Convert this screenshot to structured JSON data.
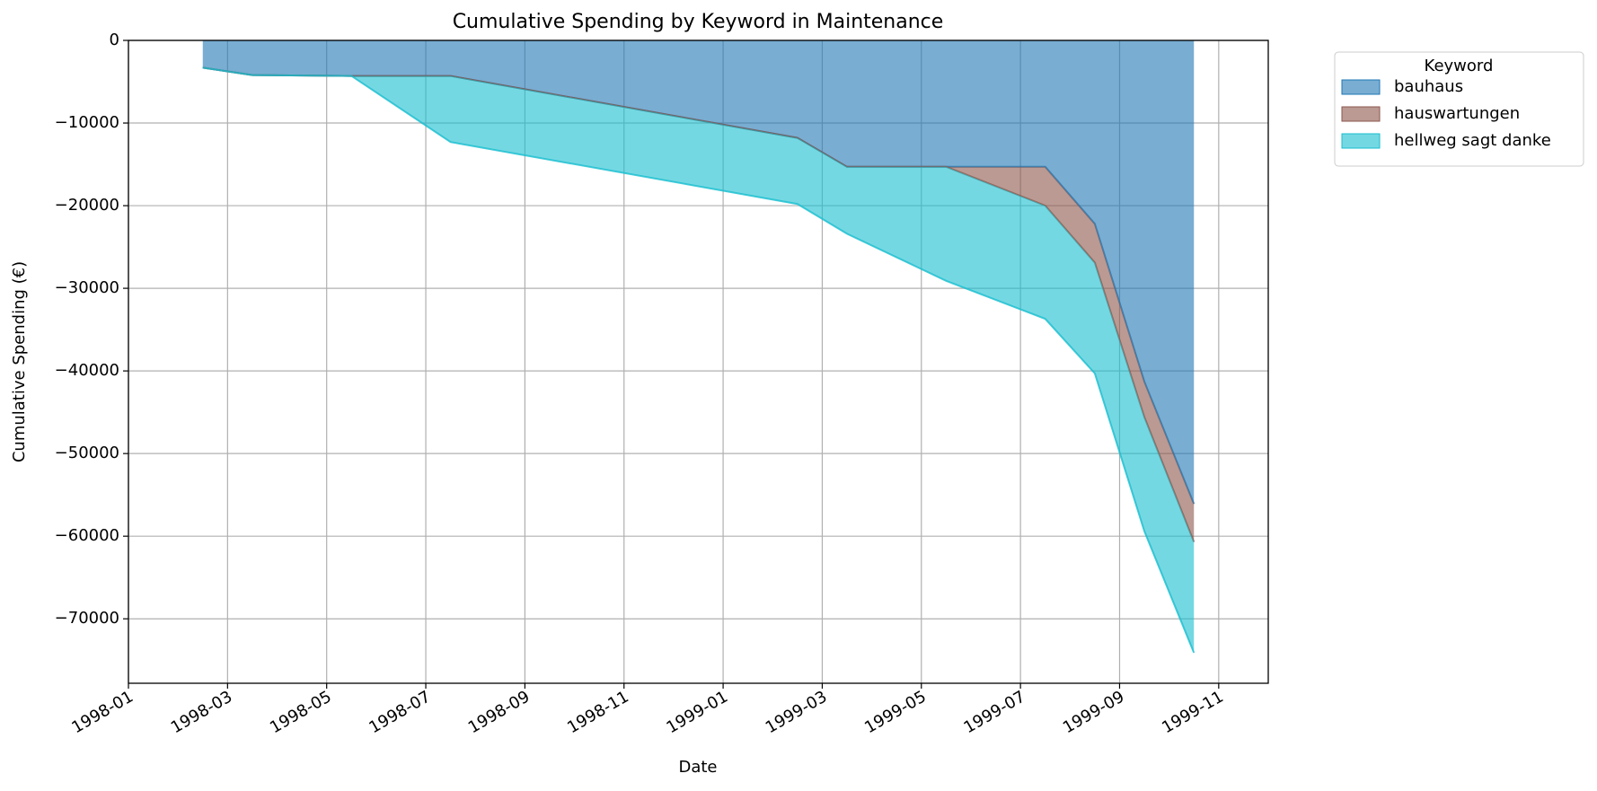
{
  "chart_data": {
    "type": "stacked-area",
    "title": "Cumulative Spending by Keyword in Maintenance",
    "x_label": "Date",
    "y_label": "Cumulative Spending (€)",
    "x": [
      "1998-02",
      "1998-03",
      "1998-05",
      "1998-07",
      "1999-02",
      "1999-03",
      "1999-05",
      "1999-07",
      "1999-08",
      "1999-09",
      "1999-10"
    ],
    "series": [
      {
        "name": "bauhaus",
        "color": "#1f77b4",
        "values": [
          -3300,
          -4200,
          -4300,
          -4300,
          -11800,
          -15300,
          -15300,
          -15300,
          -22200,
          -41300,
          -56100
        ]
      },
      {
        "name": "hauswartungen",
        "color": "#8c564b",
        "values": [
          0,
          0,
          0,
          0,
          0,
          0,
          0,
          -4700,
          -4700,
          -4300,
          -4600
        ]
      },
      {
        "name": "hellweg sagt danke",
        "color": "#17becf",
        "values": [
          0,
          0,
          0,
          -8000,
          -8000,
          -8100,
          -13800,
          -13700,
          -13400,
          -13800,
          -13400
        ]
      }
    ],
    "xlim": [
      "1998-01",
      "1999-12"
    ],
    "xticks": [
      "1998-01",
      "1998-03",
      "1998-05",
      "1998-07",
      "1998-09",
      "1998-11",
      "1999-01",
      "1999-03",
      "1999-05",
      "1999-07",
      "1999-09",
      "1999-11"
    ],
    "ylim": [
      -77800,
      0
    ],
    "yticks": [
      0,
      {
        "value": -10000,
        "label": "−10000"
      },
      {
        "value": -20000,
        "label": "−20000"
      },
      {
        "value": -30000,
        "label": "−30000"
      },
      {
        "value": -40000,
        "label": "−40000"
      },
      {
        "value": -50000,
        "label": "−50000"
      },
      {
        "value": -60000,
        "label": "−60000"
      },
      {
        "value": -70000,
        "label": "−70000"
      }
    ],
    "grid": true,
    "legend_title": "Keyword",
    "legend_position": "outside-upper-right"
  }
}
